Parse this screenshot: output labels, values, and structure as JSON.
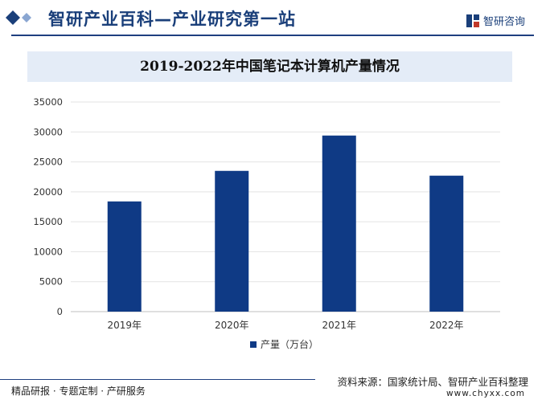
{
  "header": {
    "title": "智研产业百科—产业研究第一站",
    "brand": "智研咨询",
    "brand_icon": "zhiyan-logo-icon"
  },
  "colors": {
    "accent": "#1a3f7a",
    "bar": "#0f3a85",
    "title_bg": "#e4ecf7"
  },
  "footer": {
    "left": "精品研报 · 专题定制 · 产研服务",
    "source": "资料来源：国家统计局、智研产业百科整理",
    "url": "www.chyxx.com"
  },
  "chart_data": {
    "type": "bar",
    "title": "2019-2022年中国笔记本计算机产量情况",
    "categories": [
      "2019年",
      "2020年",
      "2021年",
      "2022年"
    ],
    "series": [
      {
        "name": "产量（万台）",
        "values": [
          18400,
          23500,
          29400,
          22700
        ]
      }
    ],
    "ylim": [
      0,
      35000
    ],
    "yticks": [
      0,
      5000,
      10000,
      15000,
      20000,
      25000,
      30000,
      35000
    ],
    "grid": true,
    "legend": "bottom"
  }
}
